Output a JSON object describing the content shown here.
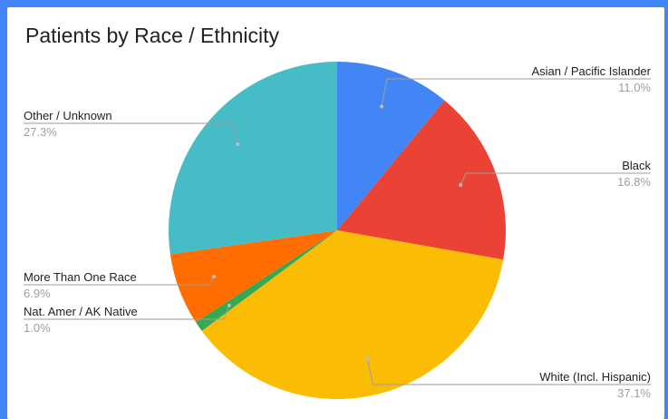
{
  "chart_data": {
    "type": "pie",
    "title": "Patients by Race / Ethnicity",
    "slices": [
      {
        "label": "Asian / Pacific Islander",
        "value": 11.0,
        "display": "11.0%",
        "color": "#4285f4"
      },
      {
        "label": "Black",
        "value": 16.8,
        "display": "16.8%",
        "color": "#ea4335"
      },
      {
        "label": "White (Incl. Hispanic)",
        "value": 37.1,
        "display": "37.1%",
        "color": "#fbbc04"
      },
      {
        "label": "Nat. Amer / AK Native",
        "value": 1.0,
        "display": "1.0%",
        "color": "#34a853"
      },
      {
        "label": "More Than One Race",
        "value": 6.9,
        "display": "6.9%",
        "color": "#ff6d01"
      },
      {
        "label": "Other / Unknown",
        "value": 27.3,
        "display": "27.3%",
        "color": "#46bdc6"
      }
    ],
    "legend": "callout-labels"
  }
}
